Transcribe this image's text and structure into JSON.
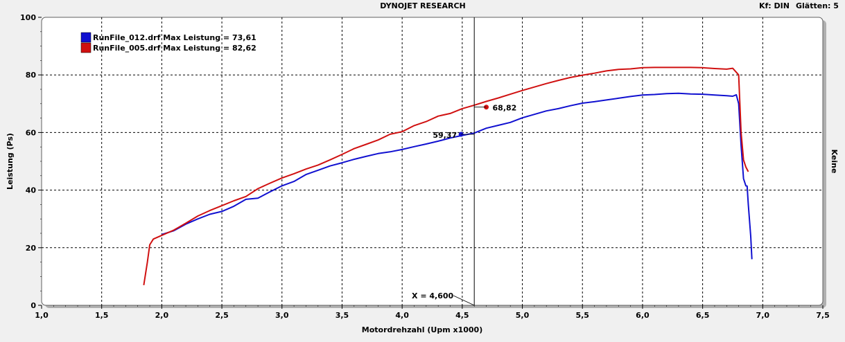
{
  "header": {
    "title": "DYNOJET RESEARCH",
    "kf": "Kf: DIN",
    "glaetten": "Glätten: 5"
  },
  "right_label": "Keine",
  "chart_data": {
    "type": "line",
    "xlabel": "Motordrehzahl (Upm x1000)",
    "ylabel": "Leistung (Ps)",
    "xlim": [
      1.0,
      7.5
    ],
    "ylim": [
      0,
      100
    ],
    "x_ticks": [
      "1,0",
      "1,5",
      "2,0",
      "2,5",
      "3,0",
      "3,5",
      "4,0",
      "4,5",
      "5,0",
      "5,5",
      "6,0",
      "6,5",
      "7,0",
      "7,5"
    ],
    "y_ticks": [
      "0",
      "20",
      "40",
      "60",
      "80",
      "100"
    ],
    "grid": true,
    "legend_position": "top-left",
    "series": [
      {
        "name": "RunFile_012.drf Max Leistung = 73,61",
        "color": "#1010d0",
        "points": [
          [
            2.0,
            24.6
          ],
          [
            2.1,
            25.9
          ],
          [
            2.2,
            28.2
          ],
          [
            2.3,
            30.0
          ],
          [
            2.4,
            31.6
          ],
          [
            2.5,
            32.6
          ],
          [
            2.6,
            34.4
          ],
          [
            2.7,
            36.8
          ],
          [
            2.8,
            37.2
          ],
          [
            2.9,
            39.4
          ],
          [
            3.0,
            41.5
          ],
          [
            3.1,
            43.0
          ],
          [
            3.2,
            45.4
          ],
          [
            3.3,
            46.9
          ],
          [
            3.4,
            48.4
          ],
          [
            3.5,
            49.5
          ],
          [
            3.6,
            50.7
          ],
          [
            3.7,
            51.7
          ],
          [
            3.8,
            52.7
          ],
          [
            3.9,
            53.3
          ],
          [
            4.0,
            54.1
          ],
          [
            4.1,
            55.1
          ],
          [
            4.2,
            56.0
          ],
          [
            4.3,
            57.0
          ],
          [
            4.4,
            58.1
          ],
          [
            4.5,
            59.0
          ],
          [
            4.6,
            59.8
          ],
          [
            4.7,
            61.5
          ],
          [
            4.8,
            62.5
          ],
          [
            4.9,
            63.5
          ],
          [
            5.0,
            65.1
          ],
          [
            5.1,
            66.3
          ],
          [
            5.2,
            67.5
          ],
          [
            5.3,
            68.3
          ],
          [
            5.4,
            69.3
          ],
          [
            5.5,
            70.2
          ],
          [
            5.6,
            70.7
          ],
          [
            5.7,
            71.3
          ],
          [
            5.8,
            71.9
          ],
          [
            5.9,
            72.5
          ],
          [
            6.0,
            73.0
          ],
          [
            6.1,
            73.2
          ],
          [
            6.2,
            73.5
          ],
          [
            6.3,
            73.6
          ],
          [
            6.4,
            73.4
          ],
          [
            6.5,
            73.3
          ],
          [
            6.6,
            73.0
          ],
          [
            6.7,
            72.8
          ],
          [
            6.75,
            72.6
          ],
          [
            6.78,
            73.1
          ],
          [
            6.8,
            70.0
          ],
          [
            6.82,
            55.5
          ],
          [
            6.84,
            44.0
          ],
          [
            6.86,
            41.5
          ],
          [
            6.87,
            41.4
          ],
          [
            6.88,
            35.0
          ],
          [
            6.9,
            24.0
          ],
          [
            6.91,
            16.0
          ]
        ]
      },
      {
        "name": "RunFile_005.drf Max Leistung = 82,62",
        "color": "#d01010",
        "points": [
          [
            1.85,
            7.0
          ],
          [
            1.88,
            15.0
          ],
          [
            1.9,
            21.0
          ],
          [
            1.93,
            23.0
          ],
          [
            2.0,
            24.3
          ],
          [
            2.1,
            26.1
          ],
          [
            2.2,
            28.5
          ],
          [
            2.3,
            31.0
          ],
          [
            2.4,
            32.9
          ],
          [
            2.5,
            34.6
          ],
          [
            2.6,
            36.3
          ],
          [
            2.7,
            37.8
          ],
          [
            2.8,
            40.5
          ],
          [
            2.9,
            42.4
          ],
          [
            3.0,
            44.2
          ],
          [
            3.1,
            45.7
          ],
          [
            3.2,
            47.3
          ],
          [
            3.3,
            48.7
          ],
          [
            3.4,
            50.5
          ],
          [
            3.5,
            52.4
          ],
          [
            3.6,
            54.4
          ],
          [
            3.7,
            55.9
          ],
          [
            3.8,
            57.4
          ],
          [
            3.9,
            59.4
          ],
          [
            4.0,
            60.3
          ],
          [
            4.1,
            62.4
          ],
          [
            4.2,
            63.8
          ],
          [
            4.3,
            65.7
          ],
          [
            4.4,
            66.6
          ],
          [
            4.5,
            68.3
          ],
          [
            4.6,
            69.5
          ],
          [
            4.7,
            70.8
          ],
          [
            4.8,
            72.0
          ],
          [
            4.9,
            73.3
          ],
          [
            5.0,
            74.6
          ],
          [
            5.1,
            75.8
          ],
          [
            5.2,
            77.0
          ],
          [
            5.3,
            78.1
          ],
          [
            5.4,
            79.1
          ],
          [
            5.5,
            79.9
          ],
          [
            5.6,
            80.6
          ],
          [
            5.7,
            81.4
          ],
          [
            5.8,
            81.9
          ],
          [
            5.9,
            82.1
          ],
          [
            6.0,
            82.5
          ],
          [
            6.1,
            82.6
          ],
          [
            6.2,
            82.6
          ],
          [
            6.3,
            82.6
          ],
          [
            6.4,
            82.6
          ],
          [
            6.5,
            82.5
          ],
          [
            6.6,
            82.2
          ],
          [
            6.7,
            82.0
          ],
          [
            6.75,
            82.3
          ],
          [
            6.8,
            80.0
          ],
          [
            6.82,
            60.0
          ],
          [
            6.84,
            50.5
          ],
          [
            6.86,
            48.0
          ],
          [
            6.88,
            46.4
          ]
        ]
      }
    ],
    "cursor": {
      "x": 4.6,
      "label": "X = 4,600"
    },
    "markers": [
      {
        "series": 0,
        "x": 4.49,
        "y": 59.37,
        "label": "59,37"
      },
      {
        "series": 1,
        "x": 4.7,
        "y": 68.82,
        "label": "68,82"
      }
    ]
  }
}
